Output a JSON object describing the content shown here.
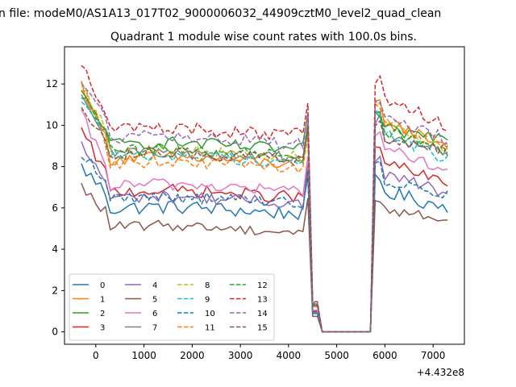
{
  "figure": {
    "title_top": "n file: modeM0/AS1A13_017T02_9000006032_44909cztM0_level2_quad_clean",
    "x_offset_label": "+4.432e8"
  },
  "chart_data": {
    "type": "line",
    "title": "Quadrant 1 module wise count rates with 100.0s bins.",
    "xlabel": "",
    "ylabel": "",
    "x_offset": 443200000,
    "xlim": [
      -650,
      7650
    ],
    "ylim": [
      -0.6,
      13.8
    ],
    "x_ticks": [
      0,
      1000,
      2000,
      3000,
      4000,
      5000,
      6000,
      7000
    ],
    "y_ticks": [
      0,
      2,
      4,
      6,
      8,
      10,
      12
    ],
    "grid": false,
    "legend_position": "lower-left",
    "legend_columns": 4,
    "series": [
      {
        "name": "0",
        "color": "#1f77b4",
        "dash": "solid",
        "base": 5.9,
        "start": 8.0,
        "end": 6.0,
        "amp": 0.35
      },
      {
        "name": "1",
        "color": "#ff7f0e",
        "dash": "solid",
        "base": 8.3,
        "start": 12.0,
        "end": 9.0,
        "amp": 0.3
      },
      {
        "name": "2",
        "color": "#2ca02c",
        "dash": "solid",
        "base": 9.0,
        "start": 11.5,
        "end": 9.4,
        "amp": 0.3
      },
      {
        "name": "3",
        "color": "#d62728",
        "dash": "solid",
        "base": 6.7,
        "start": 9.7,
        "end": 7.1,
        "amp": 0.3
      },
      {
        "name": "4",
        "color": "#9467bd",
        "dash": "solid",
        "base": 6.4,
        "start": 9.0,
        "end": 6.7,
        "amp": 0.3
      },
      {
        "name": "5",
        "color": "#8c564b",
        "dash": "solid",
        "base": 5.0,
        "start": 7.0,
        "end": 5.4,
        "amp": 0.25
      },
      {
        "name": "6",
        "color": "#e377c2",
        "dash": "solid",
        "base": 7.0,
        "start": 10.5,
        "end": 7.8,
        "amp": 0.3
      },
      {
        "name": "7",
        "color": "#7f7f7f",
        "dash": "solid",
        "base": 8.6,
        "start": 11.2,
        "end": 8.6,
        "amp": 0.3
      },
      {
        "name": "8",
        "color": "#bcbd22",
        "dash": "dashed",
        "base": 8.6,
        "start": 12.2,
        "end": 8.7,
        "amp": 0.3
      },
      {
        "name": "9",
        "color": "#17becf",
        "dash": "dashed",
        "base": 8.4,
        "start": 11.4,
        "end": 8.3,
        "amp": 0.3
      },
      {
        "name": "10",
        "color": "#1f77b4",
        "dash": "dashed",
        "base": 6.4,
        "start": 8.7,
        "end": 6.6,
        "amp": 0.3
      },
      {
        "name": "11",
        "color": "#ff7f0e",
        "dash": "dashed",
        "base": 8.1,
        "start": 11.9,
        "end": 9.0,
        "amp": 0.3
      },
      {
        "name": "12",
        "color": "#2ca02c",
        "dash": "dashed",
        "base": 8.7,
        "start": 11.5,
        "end": 8.7,
        "amp": 0.3
      },
      {
        "name": "13",
        "color": "#d62728",
        "dash": "dashed",
        "base": 9.7,
        "start": 13.1,
        "end": 10.0,
        "amp": 0.35
      },
      {
        "name": "14",
        "color": "#9467bd",
        "dash": "dashed",
        "base": 9.3,
        "start": 12.2,
        "end": 9.3,
        "amp": 0.3
      },
      {
        "name": "15",
        "color": "#8c564b",
        "dash": "dashed",
        "base": 8.5,
        "start": 11.0,
        "end": 8.7,
        "amp": 0.3
      }
    ],
    "time_profile": {
      "t_start": -300,
      "t_step": 100,
      "t_end": 7350,
      "drop_start": 4450,
      "drop_end": 4650,
      "zero_until": 5750,
      "recover_peak": 5950
    }
  }
}
